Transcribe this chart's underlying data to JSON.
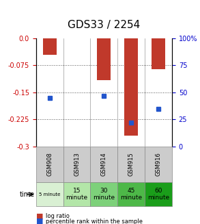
{
  "title": "GDS33 / 2254",
  "samples": [
    "GSM908",
    "GSM913",
    "GSM914",
    "GSM915",
    "GSM916"
  ],
  "time_labels": [
    "5 minute",
    "15\nminute",
    "30\nminute",
    "45\nminute",
    "60\nminute"
  ],
  "time_colors": [
    "#d9f0d3",
    "#b3e6a8",
    "#7dd17a",
    "#4db848",
    "#1a9e1a"
  ],
  "log_ratios": [
    -0.045,
    0.0,
    -0.115,
    -0.27,
    -0.085
  ],
  "percentile_ranks": [
    45,
    0,
    47,
    22,
    35
  ],
  "ylim_left": [
    -0.3,
    0.0
  ],
  "ylim_right": [
    0,
    100
  ],
  "yticks_left": [
    0.0,
    -0.075,
    -0.15,
    -0.225,
    -0.3
  ],
  "yticks_right": [
    100,
    75,
    50,
    25,
    0
  ],
  "bar_color": "#c0392b",
  "dot_color": "#2255cc",
  "grid_color": "#555555",
  "bg_color": "#ffffff",
  "left_tick_color": "#cc0000",
  "right_tick_color": "#0000cc"
}
